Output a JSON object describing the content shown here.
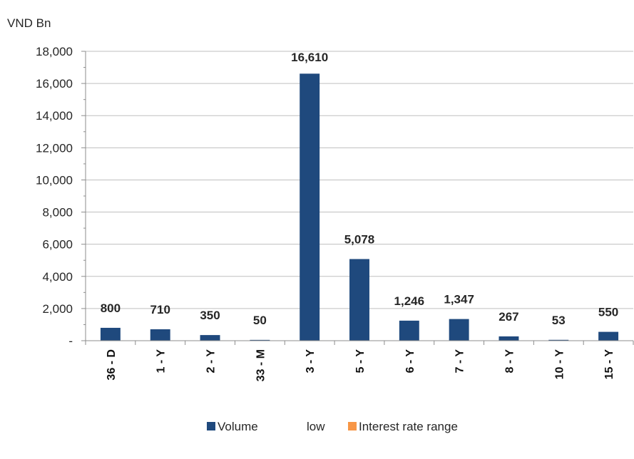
{
  "chart_data": {
    "type": "bar",
    "title": "",
    "unit_label": "VND Bn",
    "xlabel": "",
    "ylabel": "",
    "ylim": [
      0,
      18000
    ],
    "yticks": [
      0,
      2000,
      4000,
      6000,
      8000,
      10000,
      12000,
      14000,
      16000,
      18000
    ],
    "ytick_labels": [
      "-",
      "2,000",
      "4,000",
      "6,000",
      "8,000",
      "10,000",
      "12,000",
      "14,000",
      "16,000",
      "18,000"
    ],
    "grid": true,
    "legend_position": "bottom",
    "categories": [
      "36 - D",
      "1 - Y",
      "2 - Y",
      "33 - M",
      "3 - Y",
      "5 - Y",
      "6 - Y",
      "7 - Y",
      "8 - Y",
      "10 - Y",
      "15 - Y"
    ],
    "series": [
      {
        "name": "Volume",
        "color": "#1F497D",
        "values": [
          800,
          710,
          350,
          50,
          16610,
          5078,
          1246,
          1347,
          267,
          53,
          550
        ],
        "labels": [
          "800",
          "710",
          "350",
          "50",
          "16,610",
          "5,078",
          "1,246",
          "1,347",
          "267",
          "53",
          "550"
        ]
      }
    ],
    "legend": [
      {
        "name": "Volume",
        "color": "#1F497D",
        "marker": true
      },
      {
        "name": "low",
        "color": "",
        "marker": false
      },
      {
        "name": "Interest rate range",
        "color": "#F79646",
        "marker": true
      }
    ]
  }
}
